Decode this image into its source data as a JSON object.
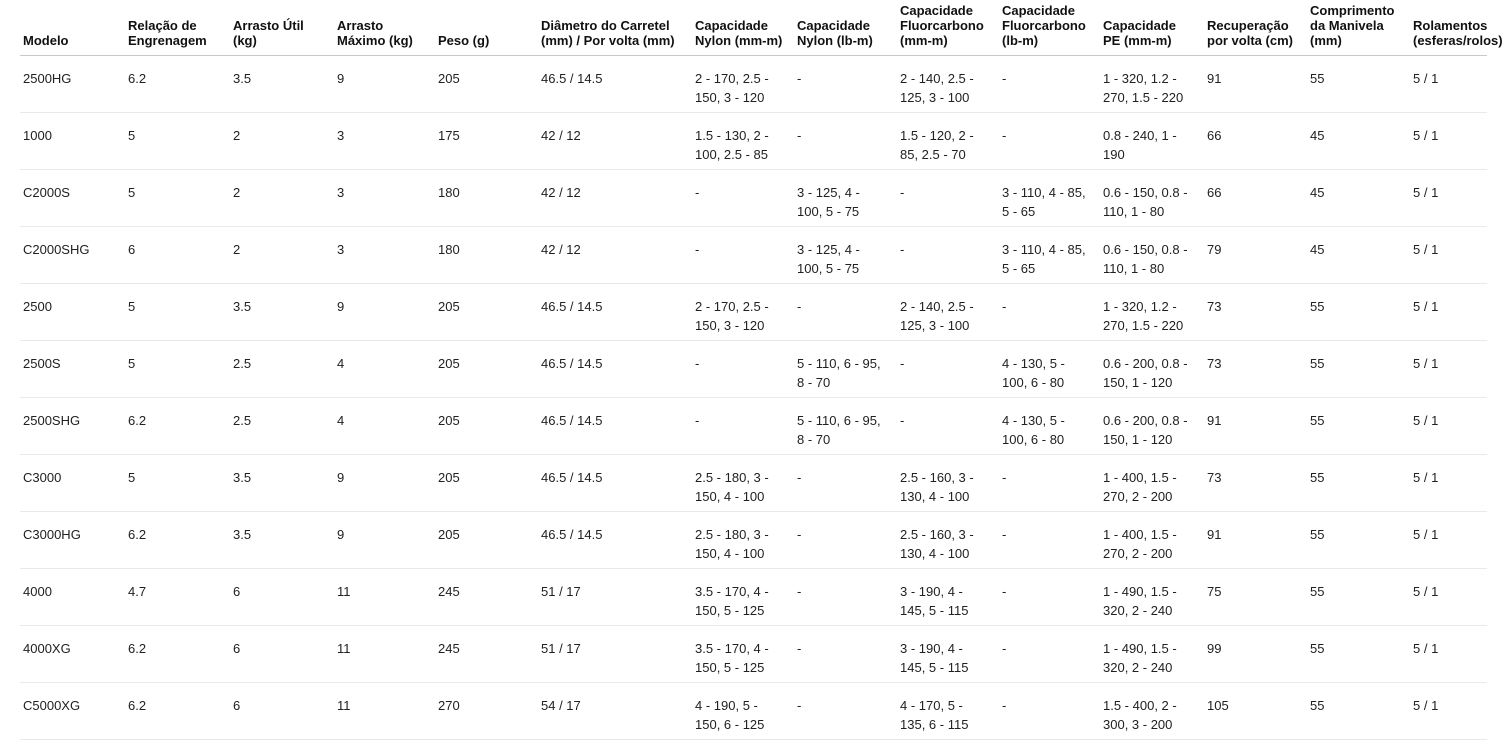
{
  "table": {
    "columns": [
      "Modelo",
      "Relação de Engrenagem",
      "Arrasto Útil (kg)",
      "Arrasto Máximo (kg)",
      "Peso (g)",
      "Diâmetro do Carretel (mm) / Por volta (mm)",
      "Capacidade Nylon (mm-m)",
      "Capacidade Nylon (lb-m)",
      "Capacidade Fluorcarbono (mm-m)",
      "Capacidade Fluorcarbono (lb-m)",
      "Capacidade PE (mm-m)",
      "Recuperação por volta (cm)",
      "Comprimento da Manivela (mm)",
      "Rolamentos (esferas/rolos)"
    ],
    "rows": [
      [
        "2500HG",
        "6.2",
        "3.5",
        "9",
        "205",
        "46.5 / 14.5",
        "2 - 170, 2.5 - 150, 3 - 120",
        "-",
        "2 - 140, 2.5 - 125, 3 - 100",
        "-",
        "1 - 320, 1.2 - 270, 1.5 - 220",
        "91",
        "55",
        "5 / 1"
      ],
      [
        "1000",
        "5",
        "2",
        "3",
        "175",
        "42 / 12",
        "1.5 - 130, 2 - 100, 2.5 - 85",
        "-",
        "1.5 - 120, 2 - 85, 2.5 - 70",
        "-",
        "0.8 - 240, 1 - 190",
        "66",
        "45",
        "5 / 1"
      ],
      [
        "C2000S",
        "5",
        "2",
        "3",
        "180",
        "42 / 12",
        "-",
        "3 - 125, 4 - 100, 5 - 75",
        "-",
        "3 - 110, 4 - 85, 5 - 65",
        "0.6 - 150, 0.8 - 110, 1 - 80",
        "66",
        "45",
        "5 / 1"
      ],
      [
        "C2000SHG",
        "6",
        "2",
        "3",
        "180",
        "42 / 12",
        "-",
        "3 - 125, 4 - 100, 5 - 75",
        "-",
        "3 - 110, 4 - 85, 5 - 65",
        "0.6 - 150, 0.8 - 110, 1 - 80",
        "79",
        "45",
        "5 / 1"
      ],
      [
        "2500",
        "5",
        "3.5",
        "9",
        "205",
        "46.5 / 14.5",
        "2 - 170, 2.5 - 150, 3 - 120",
        "-",
        "2 - 140, 2.5 - 125, 3 - 100",
        "-",
        "1 - 320, 1.2 - 270, 1.5 - 220",
        "73",
        "55",
        "5 / 1"
      ],
      [
        "2500S",
        "5",
        "2.5",
        "4",
        "205",
        "46.5 / 14.5",
        "-",
        "5 - 110, 6 - 95, 8 - 70",
        "-",
        "4 - 130, 5 - 100, 6 - 80",
        "0.6 - 200, 0.8 - 150, 1 - 120",
        "73",
        "55",
        "5 / 1"
      ],
      [
        "2500SHG",
        "6.2",
        "2.5",
        "4",
        "205",
        "46.5 / 14.5",
        "-",
        "5 - 110, 6 - 95, 8 - 70",
        "-",
        "4 - 130, 5 - 100, 6 - 80",
        "0.6 - 200, 0.8 - 150, 1 - 120",
        "91",
        "55",
        "5 / 1"
      ],
      [
        "C3000",
        "5",
        "3.5",
        "9",
        "205",
        "46.5 / 14.5",
        "2.5 - 180, 3 - 150, 4 - 100",
        "-",
        "2.5 - 160, 3 - 130, 4 - 100",
        "-",
        "1 - 400, 1.5 - 270, 2 - 200",
        "73",
        "55",
        "5 / 1"
      ],
      [
        "C3000HG",
        "6.2",
        "3.5",
        "9",
        "205",
        "46.5 / 14.5",
        "2.5 - 180, 3 - 150, 4 - 100",
        "-",
        "2.5 - 160, 3 - 130, 4 - 100",
        "-",
        "1 - 400, 1.5 - 270, 2 - 200",
        "91",
        "55",
        "5 / 1"
      ],
      [
        "4000",
        "4.7",
        "6",
        "11",
        "245",
        "51 / 17",
        "3.5 - 170, 4 - 150, 5 - 125",
        "-",
        "3 - 190, 4 - 145, 5 - 115",
        "-",
        "1 - 490, 1.5 - 320, 2 - 240",
        "75",
        "55",
        "5 / 1"
      ],
      [
        "4000XG",
        "6.2",
        "6",
        "11",
        "245",
        "51 / 17",
        "3.5 - 170, 4 - 150, 5 - 125",
        "-",
        "3 - 190, 4 - 145, 5 - 115",
        "-",
        "1 - 490, 1.5 - 320, 2 - 240",
        "99",
        "55",
        "5 / 1"
      ],
      [
        "C5000XG",
        "6.2",
        "6",
        "11",
        "270",
        "54 / 17",
        "4 - 190, 5 - 150, 6 - 125",
        "-",
        "4 - 170, 5 - 135, 6 - 115",
        "-",
        "1.5 - 400, 2 - 300, 3 - 200",
        "105",
        "55",
        "5 / 1"
      ]
    ]
  },
  "colors": {
    "background": "#ffffff",
    "header_text": "#111111",
    "body_text": "#212121",
    "header_border": "#c9c9c9",
    "row_border": "#e9e9e9"
  }
}
